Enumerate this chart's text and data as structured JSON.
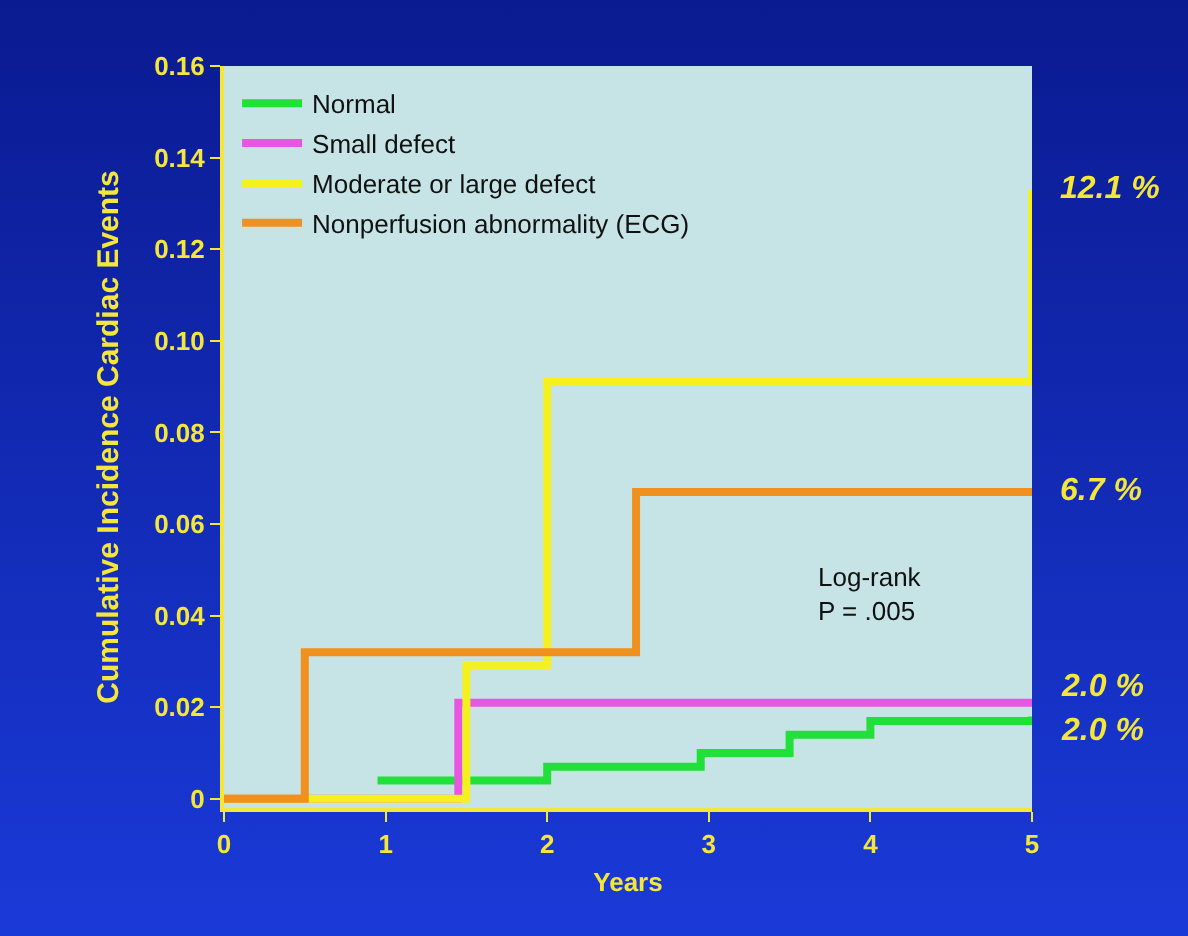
{
  "chart_data": {
    "type": "step",
    "xlabel": "Years",
    "ylabel": "Cumulative Incidence Cardiac Events",
    "xlim": [
      0,
      5
    ],
    "xticks": [
      0,
      1,
      2,
      3,
      4,
      5
    ],
    "ylim": [
      -0.002,
      0.16
    ],
    "yticks": [
      0,
      0.02,
      0.04,
      0.06,
      0.08,
      {
        "value": 0.1,
        "label": "0.10"
      },
      0.12,
      0.14,
      0.16
    ],
    "grid": false,
    "legend": "top left",
    "marker": "none",
    "line_style": "solid",
    "series": [
      {
        "name": "Normal",
        "color": "#22e03a",
        "x": [
          0.95,
          2.0,
          2.95,
          3.5,
          4.0,
          5.0
        ],
        "values": [
          0.004,
          0.007,
          0.01,
          0.014,
          0.017,
          0.018
        ]
      },
      {
        "name": "Small defect",
        "color": "#e855e0",
        "x": [
          0,
          1.45,
          5.0
        ],
        "values": [
          0,
          0.021,
          0.021
        ]
      },
      {
        "name": "Moderate or large defect",
        "color": "#f5f020",
        "x": [
          0,
          1.5,
          2.0,
          5.0,
          5.0
        ],
        "values": [
          0,
          0.029,
          0.091,
          0.091,
          0.133
        ]
      },
      {
        "name": "Nonperfusion abnormality (ECG)",
        "color": "#f0901e",
        "x": [
          0,
          0.5,
          2.55,
          5.0
        ],
        "values": [
          0,
          0.032,
          0.067,
          0.067
        ]
      }
    ],
    "annotations": [
      "12.1 %",
      "6.7 %",
      "2.0 %",
      "2.0 %",
      "Log-rank\nP = .005"
    ]
  }
}
